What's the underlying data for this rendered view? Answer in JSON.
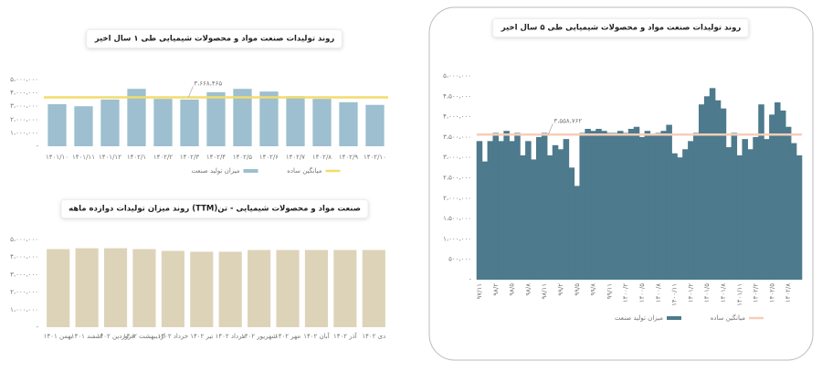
{
  "chart_data": [
    {
      "type": "bar",
      "title": "روند تولیدات صنعت مواد و محصولات شیمیایی طی ۱ سال اخیر",
      "categories": [
        "۱۴۰۱/۱۰",
        "۱۴۰۱/۱۱",
        "۱۴۰۱/۱۲",
        "۱۴۰۲/۱",
        "۱۴۰۲/۲",
        "۱۴۰۲/۳",
        "۱۴۰۲/۴",
        "۱۴۰۲/۵",
        "۱۴۰۲/۶",
        "۱۴۰۲/۷",
        "۱۴۰۲/۸",
        "۱۴۰۲/۹",
        "۱۴۰۲/۱۰"
      ],
      "series": [
        {
          "name": "میزان تولید صنعت",
          "color": "#9dbfcf",
          "values": [
            3150000,
            3000000,
            3500000,
            4300000,
            3550000,
            3500000,
            4050000,
            4300000,
            4100000,
            3750000,
            3550000,
            3300000,
            3100000
          ]
        }
      ],
      "average": {
        "name": "میانگین ساده",
        "value": 3668465,
        "label": "۳،۶۶۸،۴۶۵",
        "color": "#f3dc6b"
      },
      "ylim": [
        0,
        5000000
      ],
      "yticks": [
        {
          "value": 0,
          "label": "-"
        },
        {
          "value": 1000000,
          "label": "۱،۰۰۰،۰۰۰"
        },
        {
          "value": 2000000,
          "label": "۲،۰۰۰،۰۰۰"
        },
        {
          "value": 3000000,
          "label": "۳،۰۰۰،۰۰۰"
        },
        {
          "value": 4000000,
          "label": "۴،۰۰۰،۰۰۰"
        },
        {
          "value": 5000000,
          "label": "۵،۰۰۰،۰۰۰"
        }
      ]
    },
    {
      "type": "bar",
      "title": "روند میزان تولیدات دوازده ماهه (TTM)صنعت مواد و محصولات شیمیایی - تن",
      "categories": [
        "بهمن ۱۴۰۱",
        "اسفند ۱۴۰۱",
        "فروردین ۱۴۰۲",
        "اردیبهشت ۱۴۰۲",
        "خرداد ۱۴۰۲",
        "تیر ۱۴۰۲",
        "مرداد ۱۴۰۲",
        "شهریور ۱۴۰۲",
        "مهر ۱۴۰۲",
        "آبان ۱۴۰۲",
        "آذر ۱۴۰۲",
        "دی ۱۴۰۲"
      ],
      "series": [
        {
          "name": null,
          "color": "#ddd3b8",
          "values": [
            4450000,
            4500000,
            4500000,
            4450000,
            4350000,
            4300000,
            4300000,
            4400000,
            4400000,
            4400000,
            4400000,
            4400000
          ]
        }
      ],
      "ylim": [
        0,
        5000000
      ],
      "yticks": [
        {
          "value": 0,
          "label": "-"
        },
        {
          "value": 1000000,
          "label": "۱،۰۰۰،۰۰۰"
        },
        {
          "value": 2000000,
          "label": "۲،۰۰۰،۰۰۰"
        },
        {
          "value": 3000000,
          "label": "۳،۰۰۰،۰۰۰"
        },
        {
          "value": 4000000,
          "label": "۴،۰۰۰،۰۰۰"
        },
        {
          "value": 5000000,
          "label": "۵،۰۰۰،۰۰۰"
        }
      ]
    },
    {
      "type": "bar",
      "title": "روند تولیدات صنعت مواد و محصولات شیمیایی طی ۵ سال اخیر",
      "categories": [
        "۹۷/۱۱",
        null,
        null,
        "۹۸/۲",
        null,
        null,
        "۹۸/۵",
        null,
        null,
        "۹۸/۸",
        null,
        null,
        "۹۸/۱۱",
        null,
        null,
        "۹۹/۲",
        null,
        null,
        "۹۹/۵",
        null,
        null,
        "۹۹/۸",
        null,
        null,
        "۹۹/۱۱",
        null,
        null,
        "۱۴۰۰/۲",
        null,
        null,
        "۱۴۰۰/۵",
        null,
        null,
        "۱۴۰۰/۸",
        null,
        null,
        "۱۴۰۰/۱۱",
        null,
        null,
        "۱۴۰۱/۲",
        null,
        null,
        "۱۴۰۱/۵",
        null,
        null,
        "۱۴۰۱/۸",
        null,
        null,
        "۱۴۰۱/۱۱",
        null,
        null,
        "۱۴۰۲/۲",
        null,
        null,
        "۱۴۰۲/۵",
        null,
        null,
        "۱۴۰۲/۸",
        null,
        null
      ],
      "series": [
        {
          "name": "میزان تولید صنعت",
          "color": "#4d7a8c",
          "values": [
            3400000,
            2900000,
            3400000,
            3600000,
            3400000,
            3650000,
            3400000,
            3600000,
            3050000,
            3400000,
            2950000,
            3500000,
            3600000,
            3050000,
            3300000,
            3200000,
            3450000,
            2750000,
            2300000,
            3600000,
            3700000,
            3650000,
            3700000,
            3650000,
            3600000,
            3600000,
            3650000,
            3600000,
            3700000,
            3750000,
            3500000,
            3650000,
            3550000,
            3600000,
            3650000,
            3800000,
            3100000,
            3000000,
            3200000,
            3400000,
            3600000,
            4300000,
            4500000,
            4700000,
            4400000,
            4200000,
            3250000,
            3600000,
            3050000,
            3450000,
            3200000,
            3500000,
            4300000,
            3450000,
            4050000,
            4350000,
            4150000,
            3750000,
            3350000,
            3050000
          ]
        }
      ],
      "average": {
        "name": "میانگین ساده",
        "value": 3558762,
        "label": "۳،۵۵۸،۷۶۲",
        "color": "#f7cdb9"
      },
      "ylim": [
        0,
        5000000
      ],
      "yticks": [
        {
          "value": 0,
          "label": "-"
        },
        {
          "value": 500000,
          "label": "۵۰۰،۰۰۰"
        },
        {
          "value": 1000000,
          "label": "۱،۰۰۰،۰۰۰"
        },
        {
          "value": 1500000,
          "label": "۱،۵۰۰،۰۰۰"
        },
        {
          "value": 2000000,
          "label": "۲،۰۰۰،۰۰۰"
        },
        {
          "value": 2500000,
          "label": "۲،۵۰۰،۰۰۰"
        },
        {
          "value": 3000000,
          "label": "۳،۰۰۰،۰۰۰"
        },
        {
          "value": 3500000,
          "label": "۳،۵۰۰،۰۰۰"
        },
        {
          "value": 4000000,
          "label": "۴،۰۰۰،۰۰۰"
        },
        {
          "value": 4500000,
          "label": "۴،۵۰۰،۰۰۰"
        },
        {
          "value": 5000000,
          "label": "۵،۰۰۰،۰۰۰"
        }
      ]
    }
  ]
}
